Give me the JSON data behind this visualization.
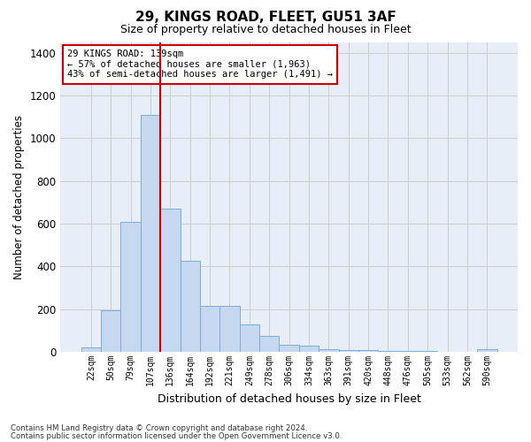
{
  "title": "29, KINGS ROAD, FLEET, GU51 3AF",
  "subtitle": "Size of property relative to detached houses in Fleet",
  "xlabel": "Distribution of detached houses by size in Fleet",
  "ylabel": "Number of detached properties",
  "categories": [
    "22sqm",
    "50sqm",
    "79sqm",
    "107sqm",
    "136sqm",
    "164sqm",
    "192sqm",
    "221sqm",
    "249sqm",
    "278sqm",
    "306sqm",
    "334sqm",
    "363sqm",
    "391sqm",
    "420sqm",
    "448sqm",
    "476sqm",
    "505sqm",
    "533sqm",
    "562sqm",
    "590sqm"
  ],
  "values": [
    20,
    195,
    610,
    1110,
    670,
    425,
    215,
    215,
    130,
    75,
    35,
    28,
    12,
    10,
    8,
    5,
    5,
    3,
    2,
    2,
    15
  ],
  "bar_color": "#c5d8f0",
  "bar_edge_color": "#7aadda",
  "grid_color": "#cccccc",
  "bg_color": "#e8eef8",
  "property_line_color": "#cc0000",
  "annotation_text": "29 KINGS ROAD: 139sqm\n← 57% of detached houses are smaller (1,963)\n43% of semi-detached houses are larger (1,491) →",
  "annotation_box_color": "#cc0000",
  "footer_line1": "Contains HM Land Registry data © Crown copyright and database right 2024.",
  "footer_line2": "Contains public sector information licensed under the Open Government Licence v3.0.",
  "ylim": [
    0,
    1450
  ],
  "yticks": [
    0,
    200,
    400,
    600,
    800,
    1000,
    1200,
    1400
  ],
  "title_fontsize": 11,
  "subtitle_fontsize": 9,
  "bar_width": 1.0
}
